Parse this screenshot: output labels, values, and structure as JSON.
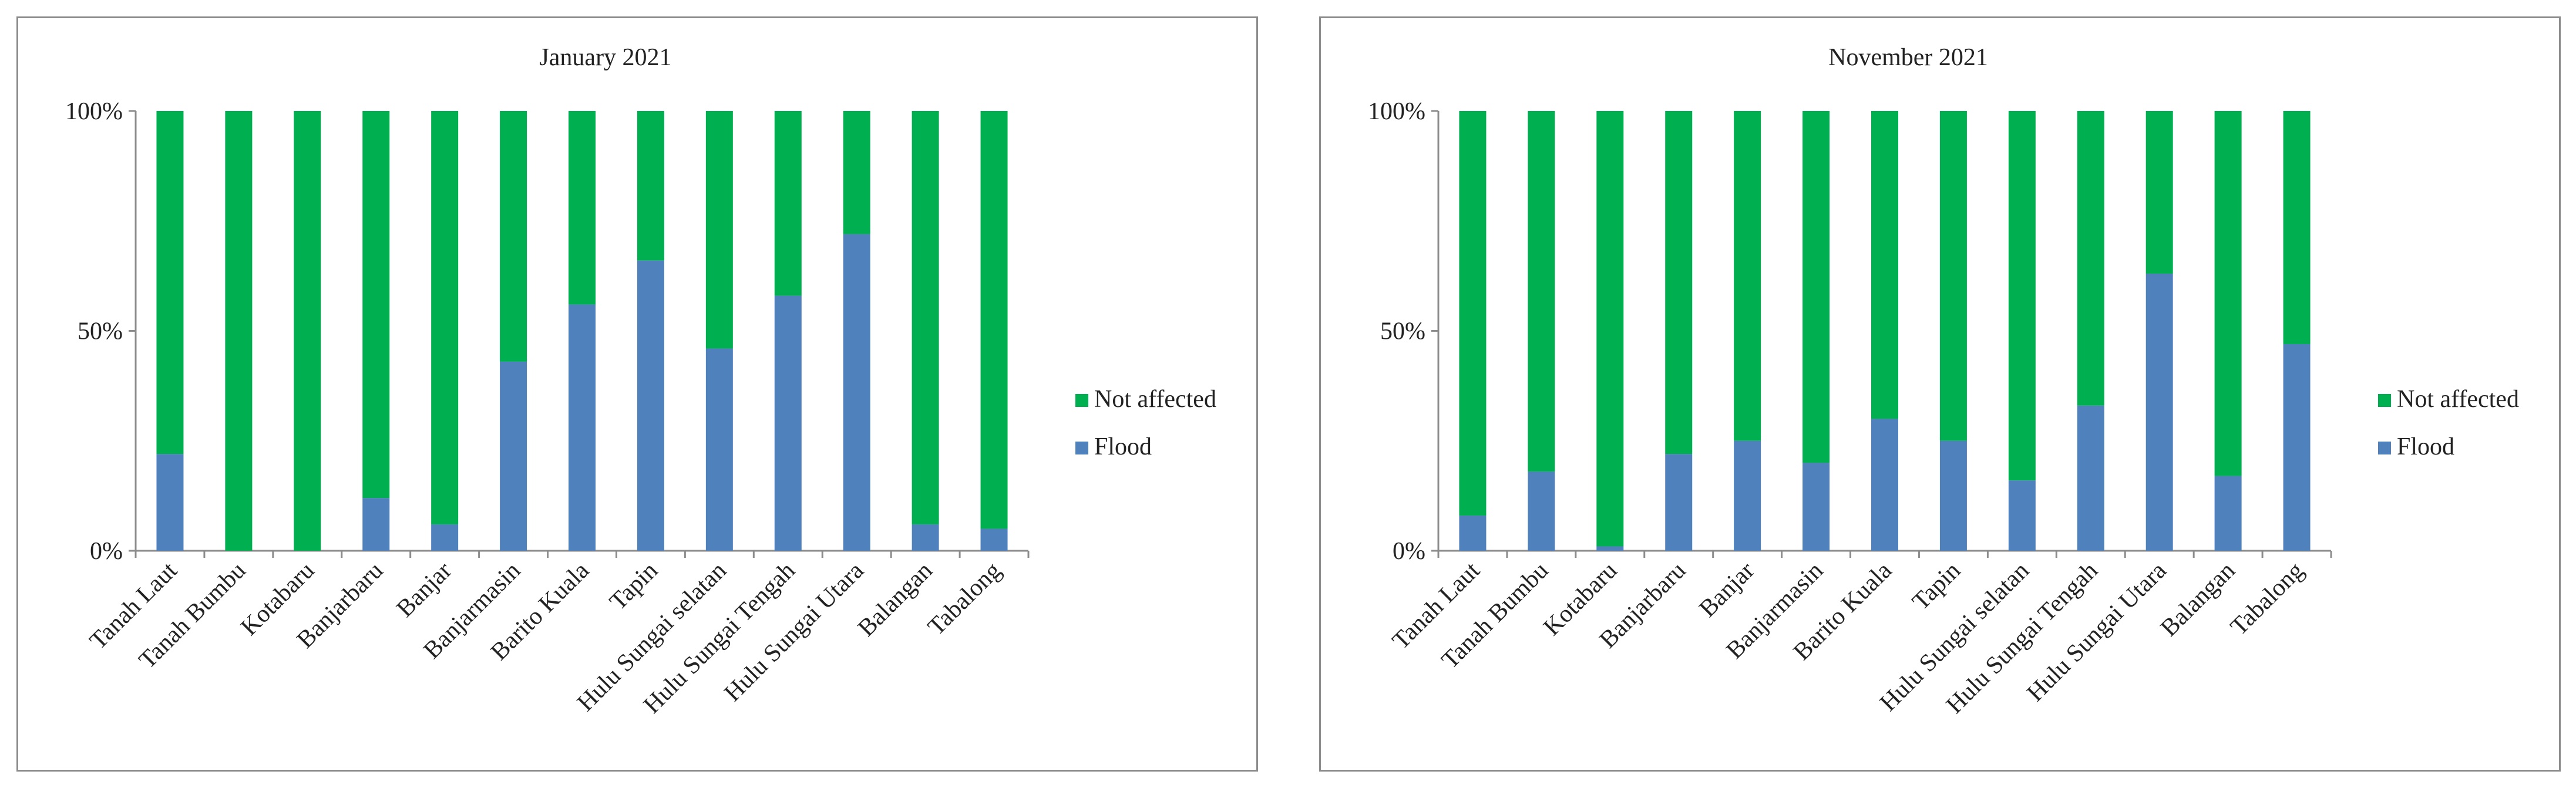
{
  "chart_data": [
    {
      "type": "bar",
      "stacked": true,
      "percent": true,
      "title": "January 2021",
      "xlabel": "",
      "ylabel": "",
      "ylim": [
        0,
        100
      ],
      "yticks": [
        "0%",
        "50%",
        "100%"
      ],
      "categories": [
        "Tanah Laut",
        "Tanah Bumbu",
        "Kotabaru",
        "Banjarbaru",
        "Banjar",
        "Banjarmasin",
        "Barito Kuala",
        "Tapin",
        "Hulu Sungai selatan",
        "Hulu Sungai Tengah",
        "Hulu Sungai Utara",
        "Balangan",
        "Tabalong"
      ],
      "series": [
        {
          "name": "Flood",
          "color": "#4f81bd",
          "values": [
            22,
            0,
            0,
            12,
            6,
            43,
            56,
            66,
            46,
            58,
            72,
            6,
            5
          ]
        },
        {
          "name": "Not affected",
          "color": "#00b050",
          "values": [
            78,
            100,
            100,
            88,
            94,
            57,
            44,
            34,
            54,
            42,
            28,
            94,
            95
          ]
        }
      ],
      "legend": [
        "Not affected",
        "Flood"
      ],
      "legend_position": "right"
    },
    {
      "type": "bar",
      "stacked": true,
      "percent": true,
      "title": "November 2021",
      "xlabel": "",
      "ylabel": "",
      "ylim": [
        0,
        100
      ],
      "yticks": [
        "0%",
        "50%",
        "100%"
      ],
      "categories": [
        "Tanah Laut",
        "Tanah Bumbu",
        "Kotabaru",
        "Banjarbaru",
        "Banjar",
        "Banjarmasin",
        "Barito Kuala",
        "Tapin",
        "Hulu Sungai selatan",
        "Hulu Sungai Tengah",
        "Hulu Sungai Utara",
        "Balangan",
        "Tabalong"
      ],
      "series": [
        {
          "name": "Flood",
          "color": "#4f81bd",
          "values": [
            8,
            18,
            1,
            22,
            25,
            20,
            30,
            25,
            16,
            33,
            63,
            17,
            47
          ]
        },
        {
          "name": "Not affected",
          "color": "#00b050",
          "values": [
            92,
            82,
            99,
            78,
            75,
            80,
            70,
            75,
            84,
            67,
            37,
            83,
            53
          ]
        }
      ],
      "legend": [
        "Not affected",
        "Flood"
      ],
      "legend_position": "right"
    }
  ]
}
